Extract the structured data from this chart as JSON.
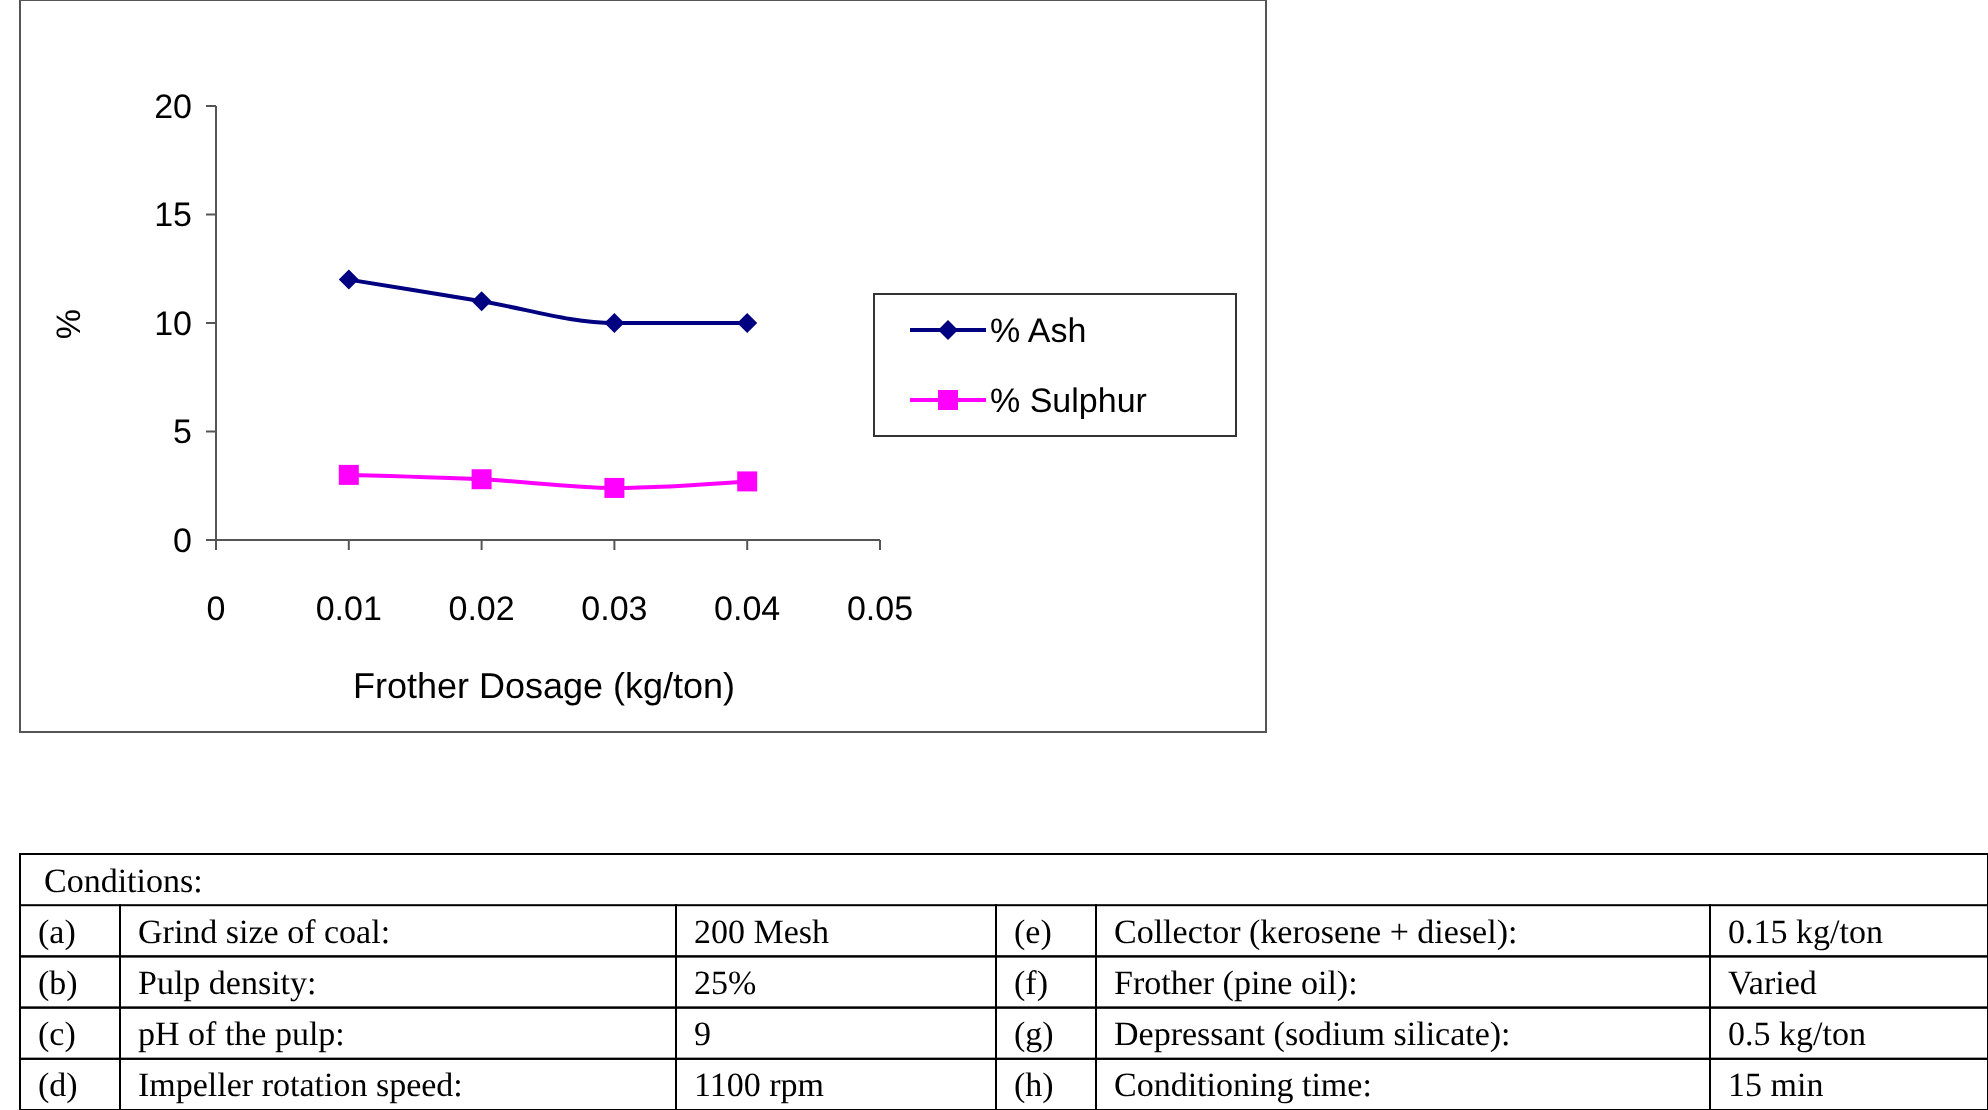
{
  "chart_data": {
    "type": "line",
    "xlabel": "Frother Dosage (kg/ton)",
    "ylabel": "%",
    "x": [
      0.01,
      0.02,
      0.03,
      0.04
    ],
    "xlim": [
      0,
      0.05
    ],
    "xticks": [
      0,
      0.01,
      0.02,
      0.03,
      0.04,
      0.05
    ],
    "ylim": [
      0,
      20
    ],
    "yticks": [
      0,
      5,
      10,
      15,
      20
    ],
    "grid": false,
    "legend": "right",
    "line_style": "solid",
    "series": [
      {
        "name": "% Ash",
        "color": "#000080",
        "marker": "diamond",
        "values": [
          12,
          11,
          10,
          10
        ]
      },
      {
        "name": "% Sulphur",
        "color": "#ff00ff",
        "marker": "square",
        "values": [
          3.0,
          2.8,
          2.4,
          2.7
        ]
      }
    ],
    "annotations": [
      "Conditions:",
      "(a)",
      "Grind size of coal:",
      "200 Mesh",
      "(e)",
      "Collector (kerosene + diesel):",
      "0.15 kg/ton",
      "(b)",
      "Pulp density:",
      "25%",
      "(f)",
      "Frother (pine oil):",
      "Varied",
      "(c)",
      "pH of the pulp:",
      "9",
      "(g)",
      "Depressant (sodium silicate):",
      "0.5 kg/ton",
      "(d)",
      "Impeller rotation speed:",
      "1100 rpm",
      "(h)",
      "Conditioning time:",
      "15 min"
    ]
  }
}
